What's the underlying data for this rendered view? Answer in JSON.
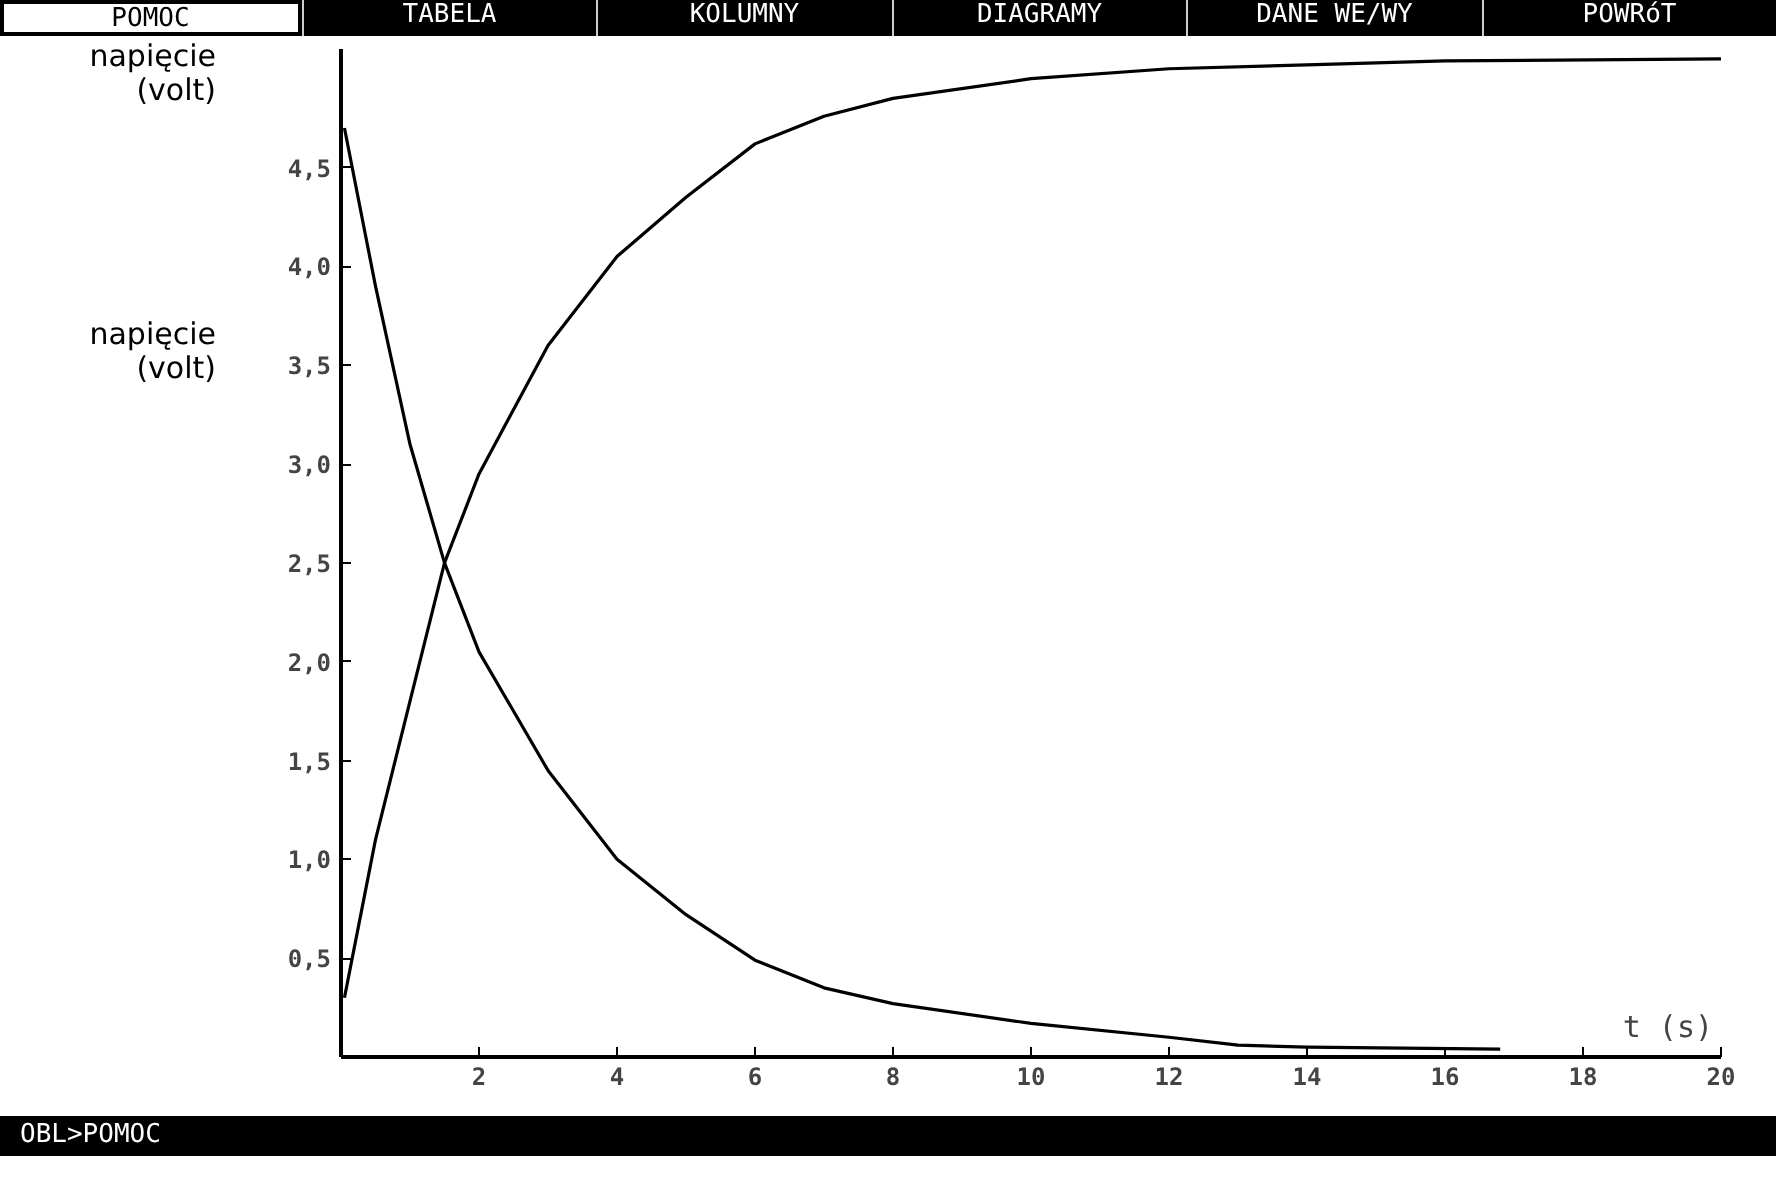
{
  "chart_data": {
    "type": "line",
    "xlabel": "t (s)",
    "ylabel": "napięcie\n(volt)",
    "annotations": [
      "POMOC",
      "TABELA",
      "KOLUMNY",
      "DIAGRAMY",
      "DANE WE/WY",
      "POWRóT",
      "OBL>POMOC",
      "napięcie\n(volt)"
    ],
    "xlim": [
      0,
      20
    ],
    "ylim": [
      0,
      5.1
    ],
    "xticks": [
      2,
      4,
      6,
      8,
      10,
      12,
      14,
      16,
      18,
      20
    ],
    "yticks": [
      {
        "value": 0.5,
        "label": "0,5"
      },
      {
        "value": 1,
        "label": "1,0"
      },
      {
        "value": 1.5,
        "label": "1,5"
      },
      {
        "value": 2,
        "label": "2,0"
      },
      {
        "value": 2.5,
        "label": "2,5"
      },
      {
        "value": 3,
        "label": "3,0"
      },
      {
        "value": 3.5,
        "label": "3,5"
      },
      {
        "value": 4,
        "label": "4,0"
      },
      {
        "value": 4.5,
        "label": "4,5"
      }
    ],
    "grid": false,
    "marker": "none",
    "line_style": "solid",
    "series": [
      {
        "color": "#000000",
        "x": [
          0.05,
          0.5,
          1,
          1.5,
          2,
          3,
          4,
          5,
          6,
          7,
          8,
          10,
          12,
          14,
          16,
          20
        ],
        "values": [
          0.3,
          1.1,
          1.8,
          2.5,
          2.95,
          3.6,
          4.05,
          4.35,
          4.62,
          4.76,
          4.85,
          4.95,
          5.0,
          5.02,
          5.04,
          5.05
        ]
      },
      {
        "color": "#000000",
        "x": [
          0.05,
          0.5,
          1,
          1.5,
          2,
          3,
          4,
          5,
          6,
          7,
          8,
          10,
          12,
          13,
          14,
          16.8
        ],
        "values": [
          4.7,
          3.9,
          3.1,
          2.5,
          2.05,
          1.45,
          1.0,
          0.72,
          0.49,
          0.35,
          0.27,
          0.17,
          0.1,
          0.06,
          0.05,
          0.04
        ]
      }
    ]
  }
}
